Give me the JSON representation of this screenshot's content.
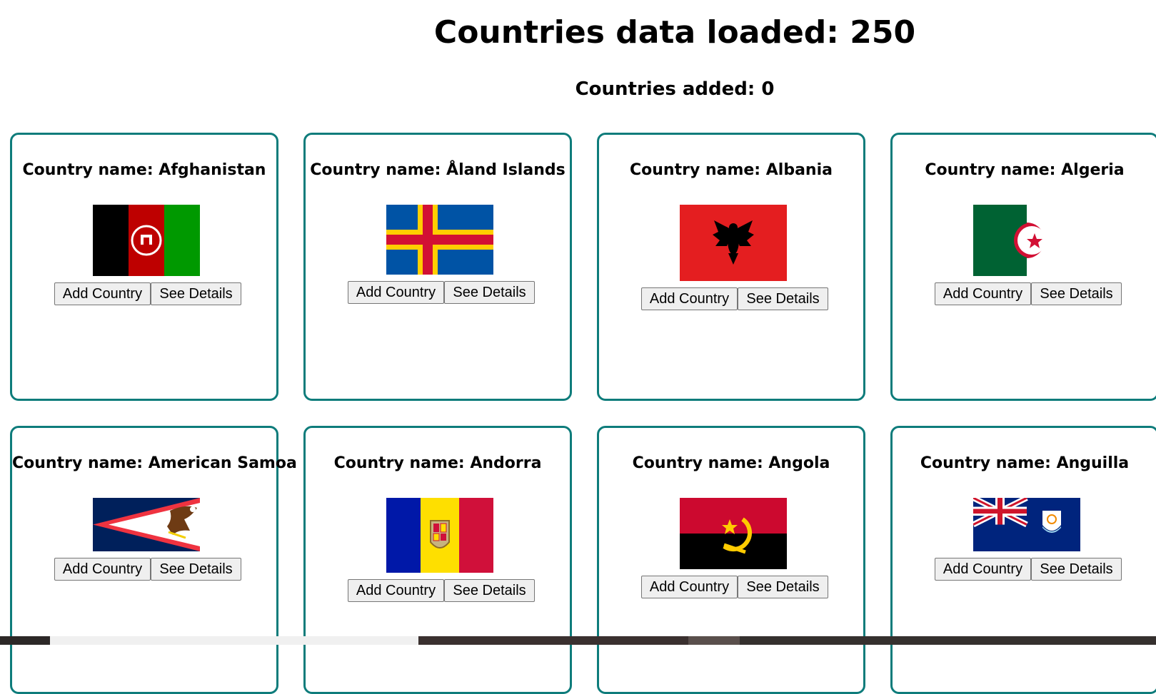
{
  "header": {
    "title": "Countries data loaded: 250",
    "added": "Countries added: 0"
  },
  "buttons": {
    "add_label": "Add Country",
    "details_label": "See Details"
  },
  "colors": {
    "card_border": "#0e7c7b"
  },
  "countries": [
    {
      "name": "Country name: Afghanistan",
      "flag": "afghanistan-flag"
    },
    {
      "name": "Country name: Åland Islands",
      "flag": "aland-islands-flag"
    },
    {
      "name": "Country name: Albania",
      "flag": "albania-flag"
    },
    {
      "name": "Country name: Algeria",
      "flag": "algeria-flag"
    },
    {
      "name": "Country name: American Samoa",
      "flag": "american-samoa-flag"
    },
    {
      "name": "Country name: Andorra",
      "flag": "andorra-flag"
    },
    {
      "name": "Country name: Angola",
      "flag": "angola-flag"
    },
    {
      "name": "Country name: Anguilla",
      "flag": "anguilla-flag"
    }
  ]
}
